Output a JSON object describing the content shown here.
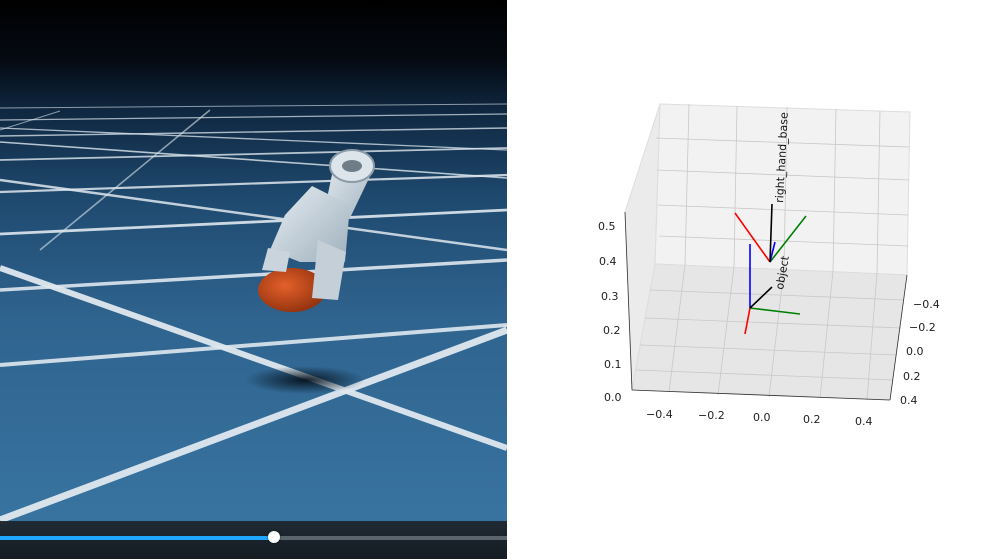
{
  "player": {
    "progress": 0.54
  },
  "plot": {
    "frames": [
      {
        "label": "right_hand_base"
      },
      {
        "label": "object"
      }
    ],
    "z_ticks": [
      "0.0",
      "0.1",
      "0.2",
      "0.3",
      "0.4",
      "0.5"
    ],
    "x_ticks": [
      "−0.4",
      "−0.2",
      "0.0",
      "0.2",
      "0.4"
    ],
    "y_ticks": [
      "−0.4",
      "−0.2",
      "0.0",
      "0.2",
      "0.4"
    ],
    "axis_colors": {
      "x": "#ff0000",
      "y": "#008000",
      "z": "#0000ff",
      "link": "#000000"
    }
  }
}
